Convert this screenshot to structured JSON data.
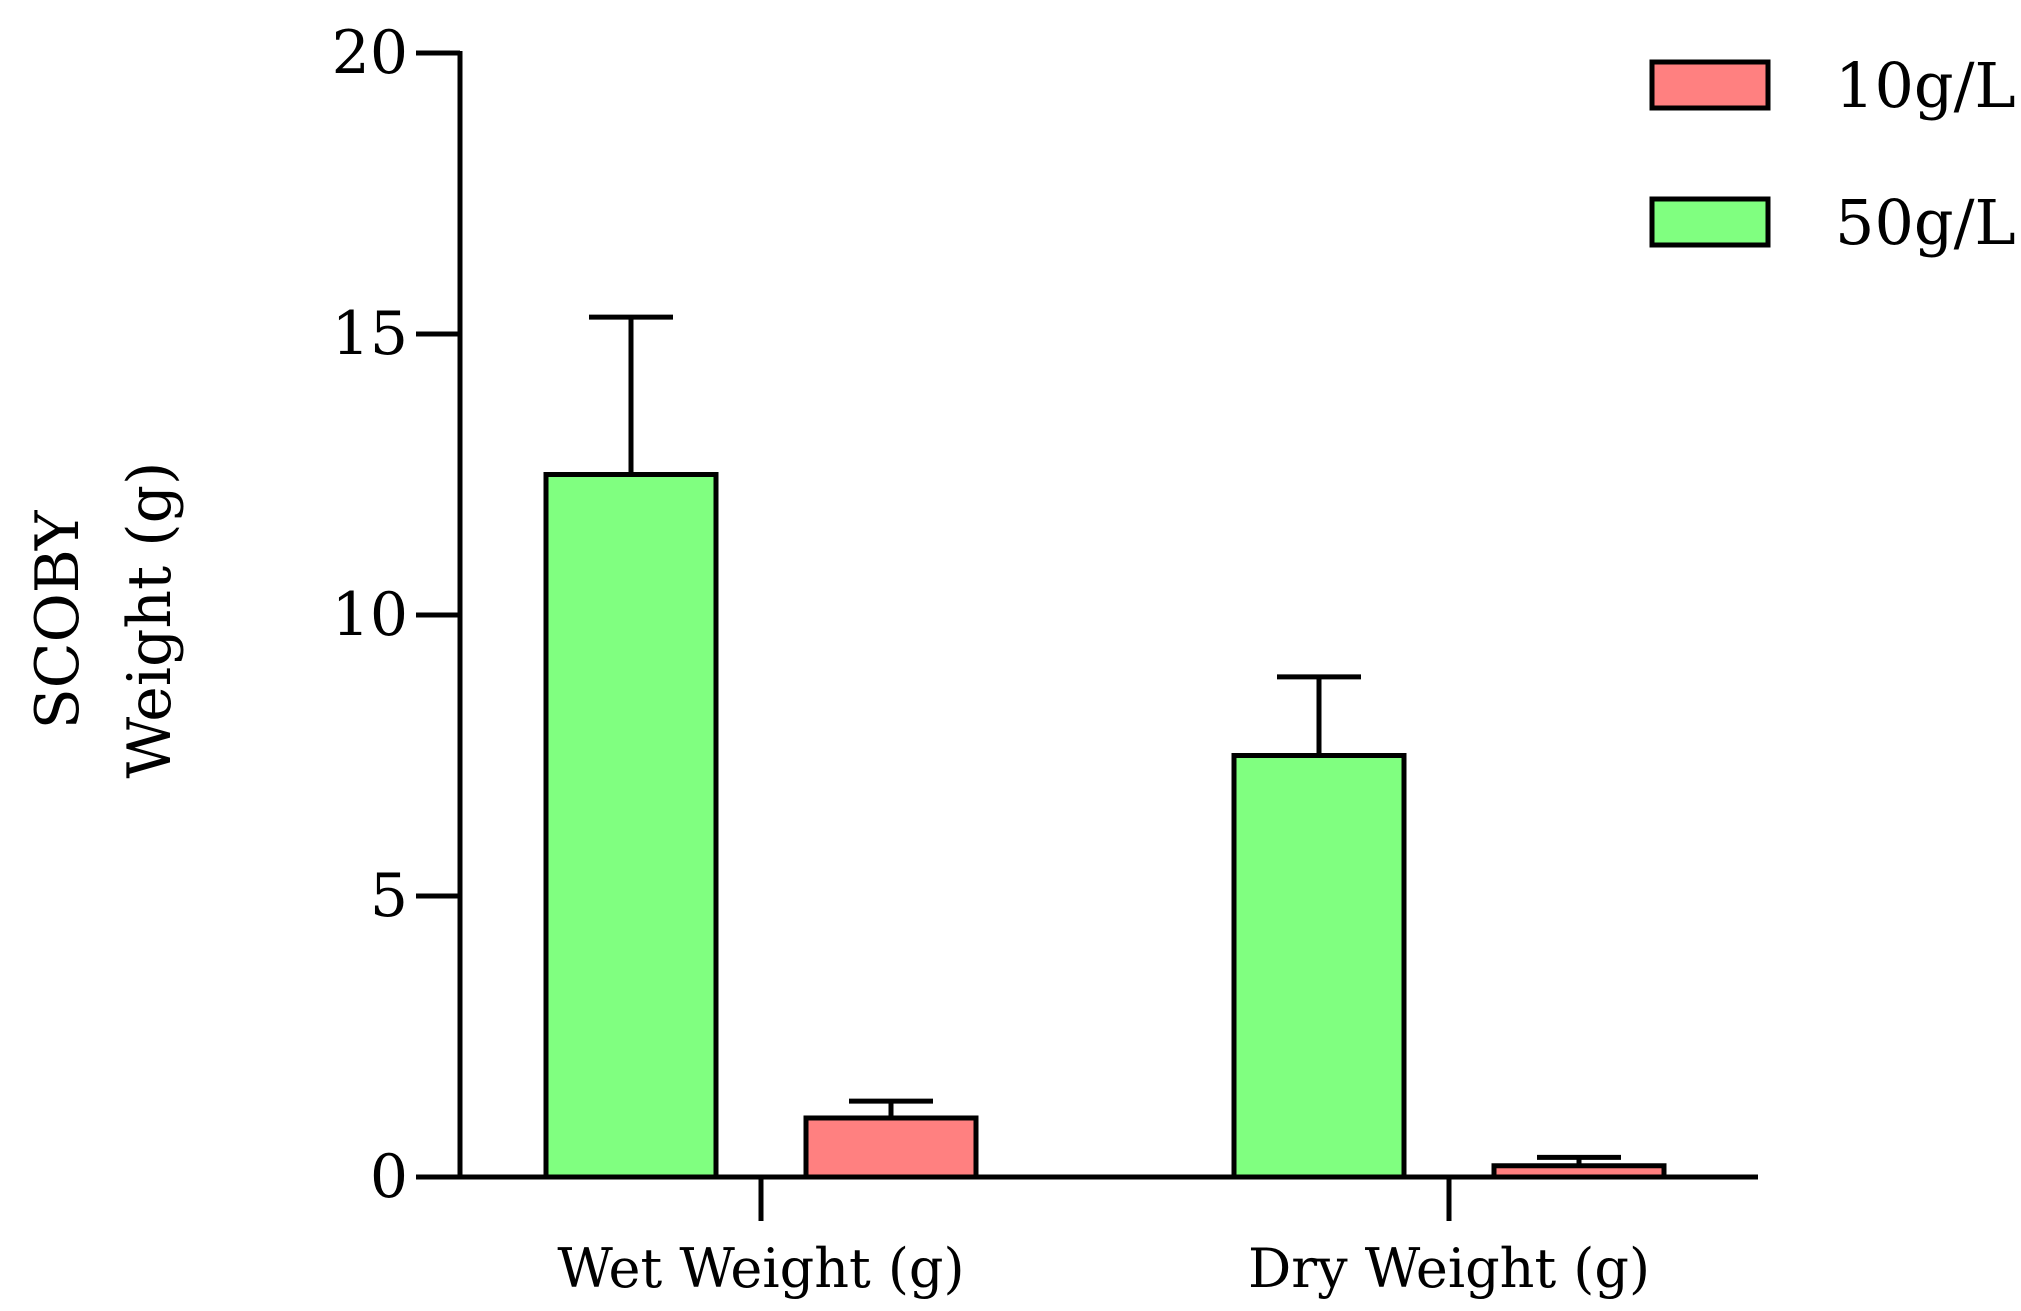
{
  "chart_data": {
    "type": "bar",
    "title": "",
    "xlabel": "",
    "ylabel_lines": [
      "SCOBY",
      "Weight (g)"
    ],
    "categories": [
      "Wet Weight (g)",
      "Dry Weight (g)"
    ],
    "series": [
      {
        "name": "50g/L",
        "color": "#80ff80",
        "values": [
          12.5,
          7.5
        ],
        "errors": [
          2.8,
          1.4
        ]
      },
      {
        "name": "10g/L",
        "color": "#ff8080",
        "values": [
          1.05,
          0.2
        ],
        "errors": [
          0.3,
          0.15
        ]
      }
    ],
    "legend_order": [
      "10g/L",
      "50g/L"
    ],
    "ylim": [
      0,
      20
    ],
    "yticks": [
      0,
      5,
      10,
      15,
      20
    ],
    "legend_position": "top-right",
    "grid": false
  }
}
